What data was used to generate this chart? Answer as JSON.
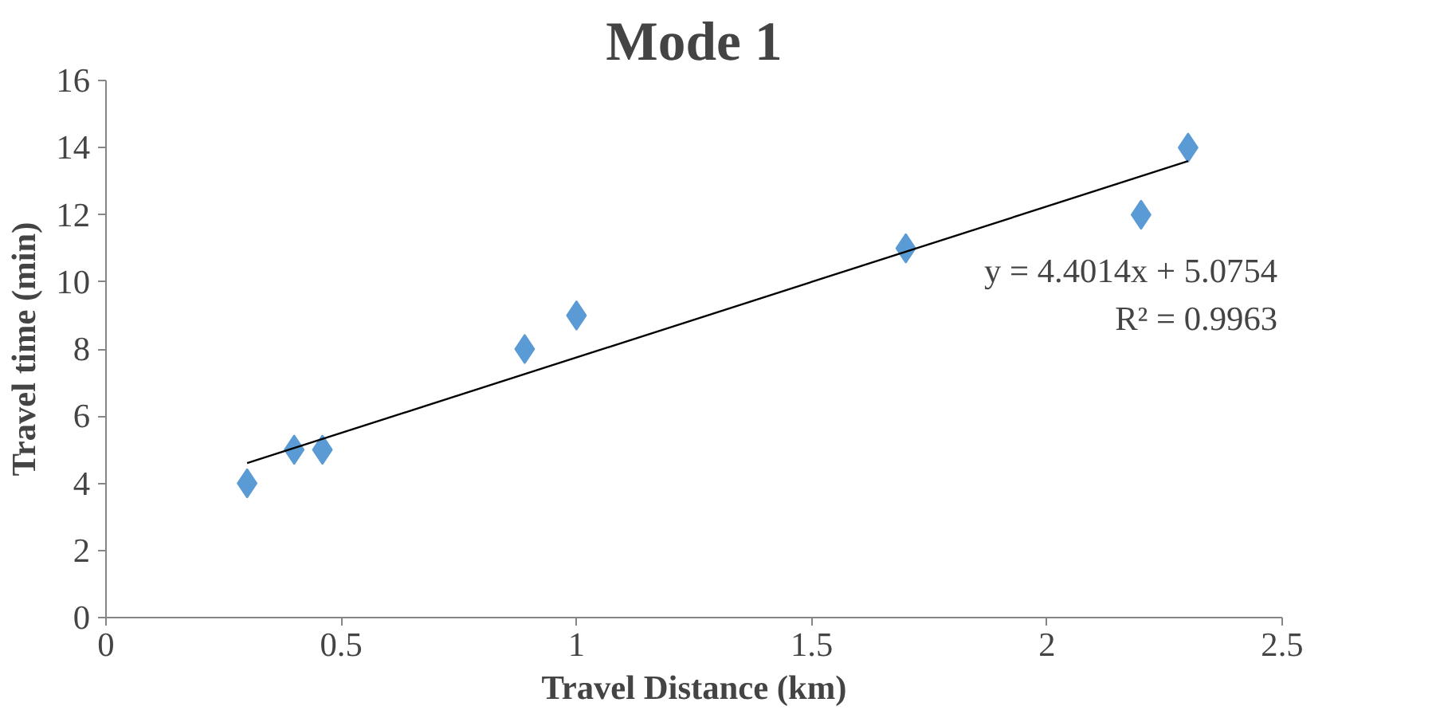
{
  "chart_data": {
    "type": "scatter",
    "title": "Mode 1",
    "xlabel": "Travel Distance (km)",
    "ylabel": "Travel time (min)",
    "xlim": [
      0,
      2.5
    ],
    "xticks": [
      0,
      0.5,
      1,
      1.5,
      2,
      2.5
    ],
    "ylim": [
      0,
      16
    ],
    "yticks": [
      0,
      2,
      4,
      6,
      8,
      10,
      12,
      14,
      16
    ],
    "grid": false,
    "series": [
      {
        "marker": "diamond",
        "color": "#5b9bd5",
        "x": [
          0.3,
          0.4,
          0.46,
          0.89,
          1.0,
          1.7,
          2.2,
          2.3
        ],
        "values": [
          4,
          5,
          5,
          8,
          9,
          11,
          12,
          14
        ]
      },
      {
        "type": "line",
        "marker": "none",
        "color": "#000000",
        "x": [
          0.3,
          2.3
        ],
        "values": [
          4.6,
          13.6
        ]
      }
    ],
    "annotations": [
      "y = 4.4014x + 5.0754\nR² = 0.9963"
    ]
  }
}
